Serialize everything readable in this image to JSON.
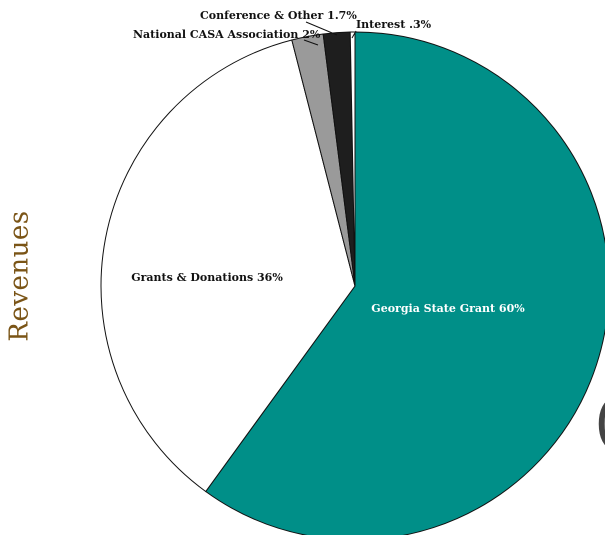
{
  "side_title": "Revenues",
  "stray_glyph": "(",
  "chart_data": {
    "type": "pie",
    "title": "",
    "slices": [
      {
        "label": "Georgia State Grant 60%",
        "value": 60,
        "color": "#008f88"
      },
      {
        "label": "Grants & Donations 36%",
        "value": 36,
        "color": "#ffffff"
      },
      {
        "label": "National CASA Association 2%",
        "value": 2,
        "color": "#9a9a9a"
      },
      {
        "label": "Conference & Other 1.7%",
        "value": 1.7,
        "color": "#1e1e1e"
      },
      {
        "label": "Interest .3%",
        "value": 0.3,
        "color": "#ffffff"
      }
    ]
  }
}
